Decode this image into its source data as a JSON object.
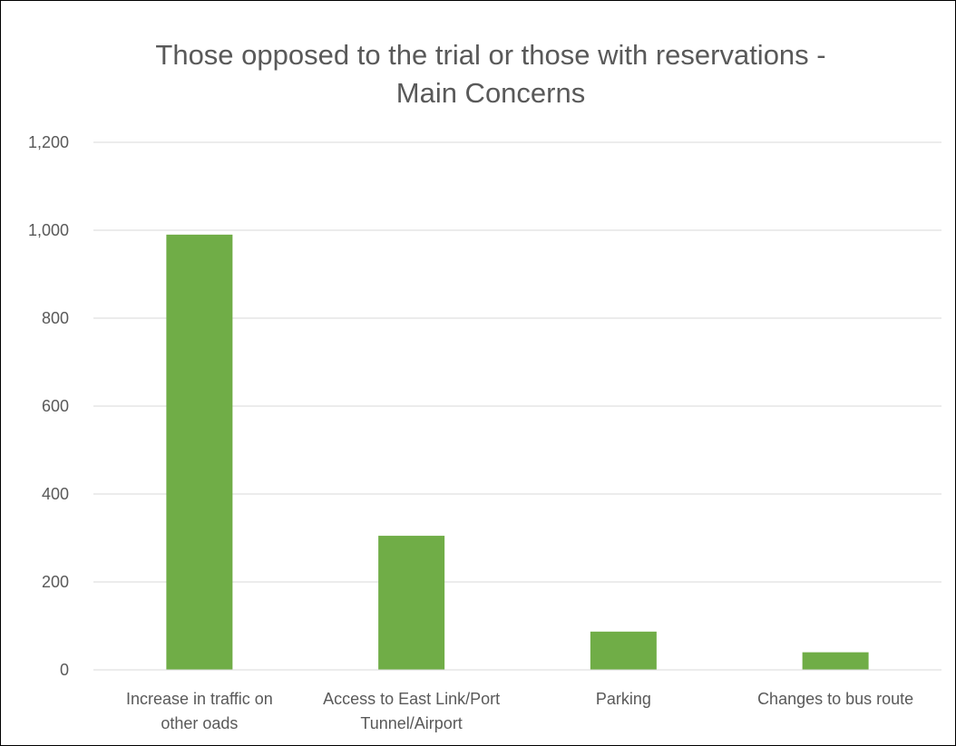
{
  "chart_data": {
    "type": "bar",
    "title_lines": [
      "Those opposed to the trial or those with reservations -",
      "Main Concerns"
    ],
    "categories": [
      [
        "Increase in traffic on",
        "other oads"
      ],
      [
        "Access to East Link/Port",
        "Tunnel/Airport"
      ],
      [
        "Parking"
      ],
      [
        "Changes to bus route"
      ]
    ],
    "values": [
      990,
      305,
      87,
      40
    ],
    "ylim": [
      0,
      1200
    ],
    "yticks": [
      0,
      200,
      400,
      600,
      800,
      1000,
      1200
    ],
    "ytick_labels": [
      "0",
      "200",
      "400",
      "600",
      "800",
      "1,000",
      "1,200"
    ],
    "grid": true,
    "legend": "none",
    "bar_color": "#70AD47",
    "grid_color": "#D9D9D9",
    "text_color": "#595959"
  }
}
